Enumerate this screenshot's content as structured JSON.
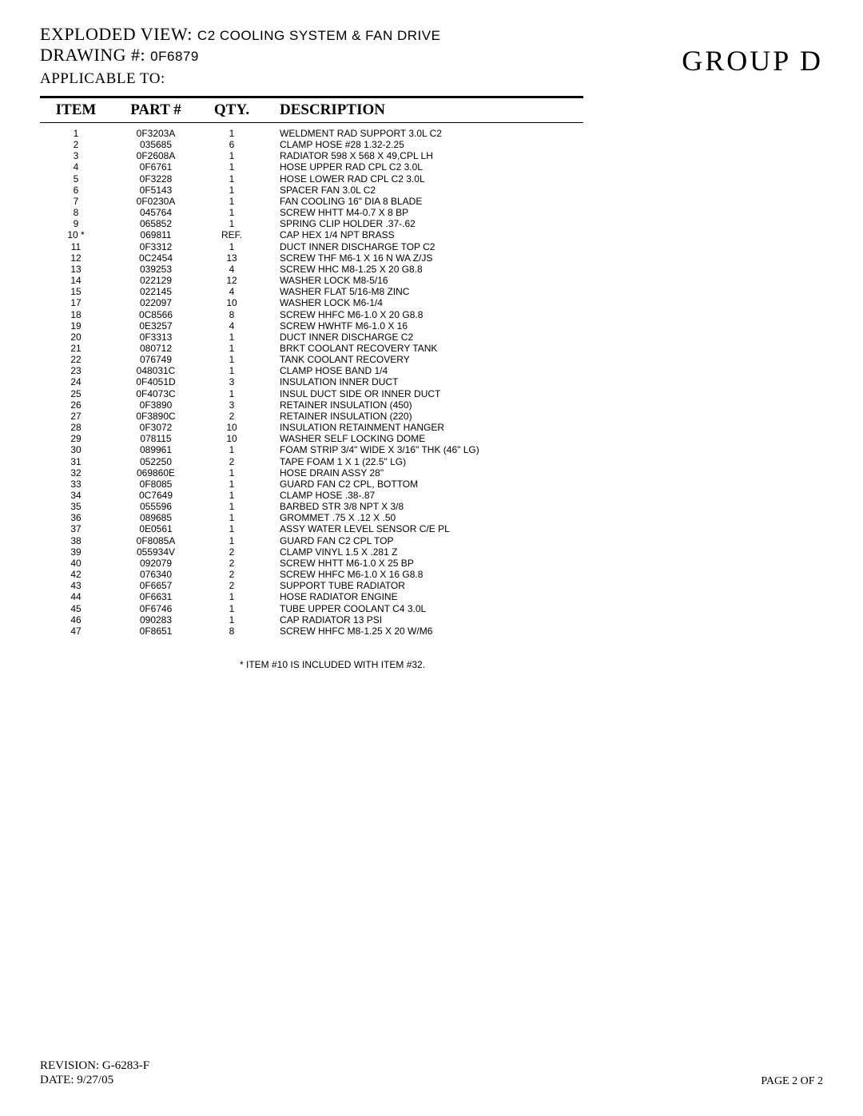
{
  "header": {
    "exploded_label": "EXPLODED VIEW:",
    "exploded_value": "C2 COOLING SYSTEM & FAN DRIVE",
    "drawing_label": "DRAWING #:",
    "drawing_value": "0F6879",
    "applicable_label": "APPLICABLE TO:",
    "group_label": "GROUP  D"
  },
  "columns": {
    "item": "ITEM",
    "part": "PART #",
    "qty": "QTY.",
    "desc": "DESCRIPTION"
  },
  "rows": [
    {
      "item": "1",
      "part": "0F3203A",
      "qty": "1",
      "desc": "WELDMENT RAD SUPPORT 3.0L C2"
    },
    {
      "item": "2",
      "part": "035685",
      "qty": "6",
      "desc": "CLAMP HOSE #28 1.32-2.25"
    },
    {
      "item": "3",
      "part": "0F2608A",
      "qty": "1",
      "desc": "RADIATOR 598 X 568 X 49,CPL LH"
    },
    {
      "item": "4",
      "part": "0F6761",
      "qty": "1",
      "desc": "HOSE UPPER RAD CPL C2 3.0L"
    },
    {
      "item": "5",
      "part": "0F3228",
      "qty": "1",
      "desc": "HOSE LOWER RAD CPL C2 3.0L"
    },
    {
      "item": "6",
      "part": "0F5143",
      "qty": "1",
      "desc": "SPACER FAN 3.0L C2"
    },
    {
      "item": "7",
      "part": "0F0230A",
      "qty": "1",
      "desc": "FAN COOLING 16\" DIA 8 BLADE"
    },
    {
      "item": "8",
      "part": "045764",
      "qty": "1",
      "desc": "SCREW HHTT M4-0.7 X 8 BP"
    },
    {
      "item": "9",
      "part": "065852",
      "qty": "1",
      "desc": "SPRING CLIP HOLDER .37-.62"
    },
    {
      "item": "10 *",
      "part": "069811",
      "qty": "REF.",
      "desc": "CAP HEX 1/4 NPT BRASS"
    },
    {
      "item": "11",
      "part": "0F3312",
      "qty": "1",
      "desc": "DUCT INNER DISCHARGE TOP C2"
    },
    {
      "item": "12",
      "part": "0C2454",
      "qty": "13",
      "desc": "SCREW THF M6-1 X 16 N WA Z/JS"
    },
    {
      "item": "13",
      "part": "039253",
      "qty": "4",
      "desc": "SCREW HHC M8-1.25 X 20 G8.8"
    },
    {
      "item": "14",
      "part": "022129",
      "qty": "12",
      "desc": "WASHER LOCK M8-5/16"
    },
    {
      "item": "15",
      "part": "022145",
      "qty": "4",
      "desc": "WASHER FLAT 5/16-M8 ZINC"
    },
    {
      "item": "17",
      "part": "022097",
      "qty": "10",
      "desc": "WASHER LOCK M6-1/4"
    },
    {
      "item": "18",
      "part": "0C8566",
      "qty": "8",
      "desc": "SCREW HHFC M6-1.0 X 20 G8.8"
    },
    {
      "item": "19",
      "part": "0E3257",
      "qty": "4",
      "desc": "SCREW HWHTF M6-1.0 X 16"
    },
    {
      "item": "20",
      "part": "0F3313",
      "qty": "1",
      "desc": "DUCT INNER DISCHARGE C2"
    },
    {
      "item": "21",
      "part": "080712",
      "qty": "1",
      "desc": "BRKT COOLANT RECOVERY TANK"
    },
    {
      "item": "22",
      "part": "076749",
      "qty": "1",
      "desc": "TANK COOLANT RECOVERY"
    },
    {
      "item": "23",
      "part": "048031C",
      "qty": "1",
      "desc": "CLAMP HOSE BAND 1/4"
    },
    {
      "item": "24",
      "part": "0F4051D",
      "qty": "3",
      "desc": "INSULATION INNER DUCT"
    },
    {
      "item": "25",
      "part": "0F4073C",
      "qty": "1",
      "desc": "INSUL DUCT SIDE OR INNER DUCT"
    },
    {
      "item": "26",
      "part": "0F3890",
      "qty": "3",
      "desc": "RETAINER INSULATION (450)"
    },
    {
      "item": "27",
      "part": "0F3890C",
      "qty": "2",
      "desc": "RETAINER INSULATION (220)"
    },
    {
      "item": "28",
      "part": "0F3072",
      "qty": "10",
      "desc": "INSULATION RETAINMENT HANGER"
    },
    {
      "item": "29",
      "part": "078115",
      "qty": "10",
      "desc": "WASHER SELF LOCKING DOME"
    },
    {
      "item": "30",
      "part": "089961",
      "qty": "1",
      "desc": "FOAM STRIP 3/4\" WIDE X 3/16\" THK (46\" LG)"
    },
    {
      "item": "31",
      "part": "052250",
      "qty": "2",
      "desc": "TAPE FOAM 1 X 1 (22.5\" LG)"
    },
    {
      "item": "32",
      "part": "069860E",
      "qty": "1",
      "desc": "HOSE DRAIN ASSY 28\""
    },
    {
      "item": "33",
      "part": "0F8085",
      "qty": "1",
      "desc": "GUARD FAN C2 CPL, BOTTOM"
    },
    {
      "item": "34",
      "part": "0C7649",
      "qty": "1",
      "desc": "CLAMP HOSE .38-.87"
    },
    {
      "item": "35",
      "part": "055596",
      "qty": "1",
      "desc": "BARBED STR 3/8 NPT X 3/8"
    },
    {
      "item": "36",
      "part": "089685",
      "qty": "1",
      "desc": "GROMMET .75 X .12 X .50"
    },
    {
      "item": "37",
      "part": "0E0561",
      "qty": "1",
      "desc": "ASSY WATER LEVEL SENSOR C/E PL"
    },
    {
      "item": "38",
      "part": "0F8085A",
      "qty": "1",
      "desc": "GUARD FAN C2 CPL TOP"
    },
    {
      "item": "39",
      "part": "055934V",
      "qty": "2",
      "desc": "CLAMP VINYL 1.5 X .281 Z"
    },
    {
      "item": "40",
      "part": "092079",
      "qty": "2",
      "desc": "SCREW HHTT M6-1.0 X 25 BP"
    },
    {
      "item": "42",
      "part": "076340",
      "qty": "2",
      "desc": "SCREW HHFC M6-1.0 X 16 G8.8"
    },
    {
      "item": "43",
      "part": "0F6657",
      "qty": "2",
      "desc": "SUPPORT TUBE RADIATOR"
    },
    {
      "item": "44",
      "part": "0F6631",
      "qty": "1",
      "desc": "HOSE RADIATOR ENGINE"
    },
    {
      "item": "45",
      "part": "0F6746",
      "qty": "1",
      "desc": "TUBE UPPER COOLANT C4 3.0L"
    },
    {
      "item": "46",
      "part": "090283",
      "qty": "1",
      "desc": "CAP RADIATOR 13 PSI"
    },
    {
      "item": "47",
      "part": "0F8651",
      "qty": "8",
      "desc": "SCREW HHFC M8-1.25 X 20 W/M6"
    }
  ],
  "footnote": "* ITEM #10 IS INCLUDED WITH ITEM #32.",
  "footer": {
    "revision_label": "REVISION:",
    "revision_value": "G-6283-F",
    "date_label": "DATE:",
    "date_value": "9/27/05",
    "page": "PAGE 2 OF 2"
  }
}
